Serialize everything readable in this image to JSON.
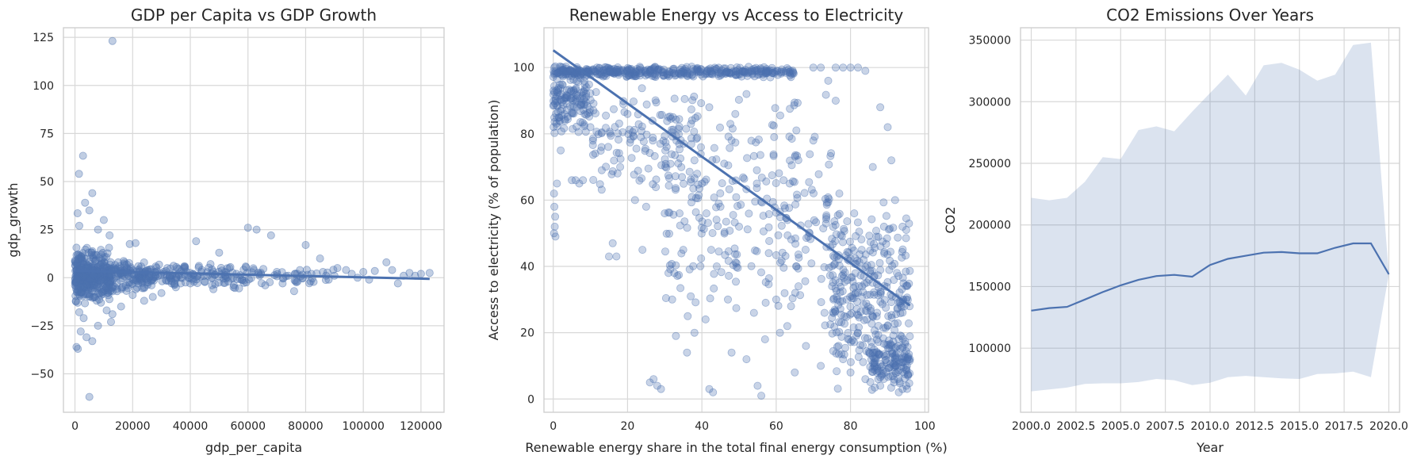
{
  "chart_data": [
    {
      "type": "scatter",
      "title": "GDP per Capita vs GDP Growth",
      "xlabel": "gdp_per_capita",
      "ylabel": "gdp_growth",
      "xlim": [
        -4000,
        128000
      ],
      "ylim": [
        -70,
        130
      ],
      "xticks": [
        0,
        20000,
        40000,
        60000,
        80000,
        100000,
        120000
      ],
      "xtick_labels": [
        "0",
        "20000",
        "40000",
        "60000",
        "80000",
        "100000",
        "120000"
      ],
      "yticks": [
        -50,
        -25,
        0,
        25,
        50,
        75,
        100,
        125
      ],
      "ytick_labels": [
        "−50",
        "−25",
        "0",
        "25",
        "50",
        "75",
        "100",
        "125"
      ],
      "grid": true,
      "color": "#4c72b0",
      "marker_alpha": 0.35,
      "points": [
        [
          13000,
          123.1
        ],
        [
          2800,
          63.4
        ],
        [
          1400,
          54.0
        ],
        [
          6000,
          44.0
        ],
        [
          3500,
          39.0
        ],
        [
          5000,
          35.0
        ],
        [
          900,
          33.5
        ],
        [
          10000,
          30.0
        ],
        [
          1500,
          27.0
        ],
        [
          8000,
          25.0
        ],
        [
          12000,
          22.0
        ],
        [
          19000,
          17.5
        ],
        [
          21000,
          18.0
        ],
        [
          42000,
          19.0
        ],
        [
          50000,
          13.0
        ],
        [
          60000,
          26.0
        ],
        [
          63000,
          25.0
        ],
        [
          68000,
          22.0
        ],
        [
          80000,
          17.0
        ],
        [
          85000,
          10.0
        ],
        [
          91000,
          5.0
        ],
        [
          100000,
          3.0
        ],
        [
          104000,
          3.5
        ],
        [
          108000,
          8.0
        ],
        [
          110000,
          4.0
        ],
        [
          116000,
          2.5
        ],
        [
          120000,
          2.0
        ],
        [
          123000,
          2.5
        ],
        [
          118000,
          1.0
        ],
        [
          96000,
          2.0
        ],
        [
          88000,
          -1.0
        ],
        [
          76000,
          -7.0
        ],
        [
          72000,
          -3.0
        ],
        [
          66000,
          -4.0
        ],
        [
          55000,
          -5.0
        ],
        [
          48000,
          -6.0
        ],
        [
          45000,
          -2.0
        ],
        [
          40000,
          -3.0
        ],
        [
          35000,
          -5.0
        ],
        [
          30000,
          -8.0
        ],
        [
          27000,
          -10.0
        ],
        [
          24000,
          -12.0
        ],
        [
          20000,
          -9.0
        ],
        [
          16000,
          -15.0
        ],
        [
          13000,
          -19.0
        ],
        [
          12500,
          -23.0
        ],
        [
          11000,
          -17.0
        ],
        [
          9000,
          -13.0
        ],
        [
          8000,
          -25.0
        ],
        [
          6000,
          -33.0
        ],
        [
          4000,
          -31.0
        ],
        [
          2000,
          -28.0
        ],
        [
          1000,
          -37.0
        ],
        [
          500,
          -36.0
        ],
        [
          5000,
          -62.0
        ],
        [
          3000,
          -21.0
        ],
        [
          1500,
          -18.0
        ],
        [
          7000,
          -10.0
        ],
        [
          15000,
          8.0
        ],
        [
          18000,
          5.0
        ],
        [
          22000,
          6.0
        ],
        [
          25000,
          4.0
        ],
        [
          28000,
          3.0
        ],
        [
          32000,
          5.0
        ],
        [
          36000,
          2.0
        ],
        [
          38000,
          6.0
        ],
        [
          44000,
          4.0
        ],
        [
          46000,
          1.0
        ],
        [
          52000,
          3.0
        ],
        [
          56000,
          2.0
        ],
        [
          58000,
          -1.0
        ],
        [
          62000,
          4.0
        ],
        [
          64000,
          1.0
        ],
        [
          70000,
          3.0
        ],
        [
          74000,
          1.0
        ],
        [
          78000,
          4.0
        ],
        [
          82000,
          2.0
        ],
        [
          86000,
          3.0
        ],
        [
          90000,
          1.0
        ],
        [
          94000,
          4.0
        ],
        [
          98000,
          0.0
        ],
        [
          102000,
          -1.0
        ],
        [
          112000,
          -3.0
        ],
        [
          114000,
          1.0
        ]
      ],
      "dense_regions": [
        {
          "x": [
            0,
            12000
          ],
          "y": [
            -14,
            16
          ],
          "n": 380
        },
        {
          "x": [
            12000,
            30000
          ],
          "y": [
            -8,
            10
          ],
          "n": 160
        },
        {
          "x": [
            30000,
            60000
          ],
          "y": [
            -6,
            8
          ],
          "n": 110
        },
        {
          "x": [
            60000,
            90000
          ],
          "y": [
            -4,
            6
          ],
          "n": 40
        }
      ],
      "trend_line": {
        "x": [
          0,
          123000
        ],
        "y": [
          3.6,
          -0.6
        ]
      }
    },
    {
      "type": "scatter",
      "title": "Renewable Energy vs Access to Electricity",
      "xlabel": "Renewable energy share in the total final energy consumption (%)",
      "ylabel": "Access to electricity (% of population)",
      "xlim": [
        -2.5,
        101
      ],
      "ylim": [
        -4,
        112
      ],
      "xticks": [
        0,
        20,
        40,
        60,
        80,
        100
      ],
      "xtick_labels": [
        "0",
        "20",
        "40",
        "60",
        "80",
        "100"
      ],
      "yticks": [
        0,
        20,
        40,
        60,
        80,
        100
      ],
      "ytick_labels": [
        "0",
        "20",
        "40",
        "60",
        "80",
        "100"
      ],
      "grid": true,
      "color": "#4c72b0",
      "marker_alpha": 0.3,
      "points": [
        [
          0.2,
          62
        ],
        [
          0.3,
          58
        ],
        [
          0.5,
          55
        ],
        [
          0.4,
          52
        ],
        [
          0.2,
          50
        ],
        [
          0.6,
          49
        ],
        [
          1.0,
          65
        ],
        [
          2.0,
          75
        ],
        [
          5,
          66
        ],
        [
          6,
          66
        ],
        [
          7,
          65
        ],
        [
          8,
          66
        ],
        [
          10,
          82
        ],
        [
          13,
          76
        ],
        [
          15,
          43
        ],
        [
          16,
          47
        ],
        [
          17,
          43
        ],
        [
          18,
          70
        ],
        [
          20,
          86
        ],
        [
          22,
          60
        ],
        [
          24,
          45
        ],
        [
          25,
          58
        ],
        [
          26,
          5
        ],
        [
          27,
          6
        ],
        [
          28,
          4
        ],
        [
          29,
          3
        ],
        [
          30,
          56
        ],
        [
          31,
          38
        ],
        [
          32,
          30
        ],
        [
          33,
          19
        ],
        [
          34,
          56
        ],
        [
          35,
          45
        ],
        [
          36,
          14
        ],
        [
          37,
          31
        ],
        [
          38,
          20
        ],
        [
          40,
          65
        ],
        [
          41,
          24
        ],
        [
          42,
          3
        ],
        [
          43,
          2
        ],
        [
          44,
          40
        ],
        [
          45,
          58
        ],
        [
          46,
          71
        ],
        [
          47,
          30
        ],
        [
          48,
          14
        ],
        [
          49,
          86
        ],
        [
          50,
          52
        ],
        [
          52,
          12
        ],
        [
          54,
          26
        ],
        [
          55,
          4
        ],
        [
          56,
          1
        ],
        [
          57,
          18
        ],
        [
          58,
          44
        ],
        [
          60,
          30
        ],
        [
          61,
          20
        ],
        [
          62,
          66
        ],
        [
          63,
          22
        ],
        [
          64,
          28
        ],
        [
          65,
          8
        ],
        [
          66,
          34
        ],
        [
          68,
          16
        ],
        [
          69,
          50
        ],
        [
          70,
          78
        ],
        [
          72,
          10
        ],
        [
          73,
          26
        ],
        [
          74,
          96
        ],
        [
          75,
          40
        ],
        [
          76,
          90
        ],
        [
          77,
          62
        ],
        [
          78,
          12
        ],
        [
          79,
          30
        ],
        [
          80,
          8
        ],
        [
          81,
          56
        ],
        [
          82,
          20
        ],
        [
          83,
          45
        ],
        [
          84,
          6
        ],
        [
          85,
          36
        ],
        [
          86,
          25
        ],
        [
          87,
          14
        ],
        [
          88,
          4
        ],
        [
          89,
          52
        ],
        [
          90,
          22
        ],
        [
          91,
          72
        ],
        [
          92,
          10
        ],
        [
          93,
          18
        ],
        [
          94,
          3
        ],
        [
          95,
          30
        ],
        [
          96,
          12
        ],
        [
          95,
          4
        ],
        [
          93,
          2
        ],
        [
          94,
          52
        ],
        [
          95,
          51
        ],
        [
          92,
          60
        ],
        [
          80,
          100
        ],
        [
          82,
          100
        ],
        [
          78,
          100
        ],
        [
          76,
          100
        ],
        [
          72,
          100
        ],
        [
          70,
          100
        ],
        [
          84,
          99
        ],
        [
          88,
          88
        ],
        [
          90,
          82
        ],
        [
          86,
          70
        ],
        [
          52,
          92
        ],
        [
          48,
          78
        ],
        [
          42,
          88
        ],
        [
          38,
          72
        ]
      ],
      "dense_regions": [
        {
          "x": [
            0,
            65
          ],
          "y": [
            97,
            100.5
          ],
          "n": 420
        },
        {
          "x": [
            0,
            10
          ],
          "y": [
            80,
            100
          ],
          "n": 140
        },
        {
          "x": [
            10,
            40
          ],
          "y": [
            60,
            97
          ],
          "n": 120
        },
        {
          "x": [
            30,
            75
          ],
          "y": [
            20,
            95
          ],
          "n": 260
        },
        {
          "x": [
            75,
            96
          ],
          "y": [
            2,
            60
          ],
          "n": 300
        },
        {
          "x": [
            85,
            96
          ],
          "y": [
            2,
            20
          ],
          "n": 120
        }
      ],
      "trend_line": {
        "x": [
          0,
          96
        ],
        "y": [
          105.2,
          28.2
        ]
      }
    },
    {
      "type": "line",
      "title": "CO2 Emissions Over Years",
      "xlabel": "Year",
      "ylabel": "CO2",
      "xlim": [
        1999.4,
        2020.6
      ],
      "ylim": [
        48000,
        360000
      ],
      "xticks": [
        2000.0,
        2002.5,
        2005.0,
        2007.5,
        2010.0,
        2012.5,
        2015.0,
        2017.5,
        2020.0
      ],
      "xtick_labels": [
        "2000.0",
        "2002.5",
        "2005.0",
        "2007.5",
        "2010.0",
        "2012.5",
        "2015.0",
        "2017.5",
        "2020.0"
      ],
      "yticks": [
        100000,
        150000,
        200000,
        250000,
        300000,
        350000
      ],
      "ytick_labels": [
        "100000",
        "150000",
        "200000",
        "250000",
        "300000",
        "350000"
      ],
      "grid": true,
      "color": "#4c72b0",
      "band_alpha": 0.2,
      "x": [
        2000,
        2001,
        2002,
        2003,
        2004,
        2005,
        2006,
        2007,
        2008,
        2009,
        2010,
        2011,
        2012,
        2013,
        2014,
        2015,
        2016,
        2017,
        2018,
        2019,
        2020
      ],
      "y": [
        130500,
        132500,
        133500,
        139500,
        145500,
        151000,
        155500,
        158500,
        159500,
        158000,
        167500,
        172500,
        175000,
        177500,
        178000,
        177000,
        177000,
        181500,
        185000,
        185000,
        160000
      ],
      "ci_lower": [
        65000,
        66500,
        68000,
        71000,
        71500,
        71500,
        72500,
        75000,
        74000,
        70000,
        72000,
        76500,
        77500,
        76500,
        75500,
        75000,
        79000,
        79500,
        81000,
        76500,
        160000
      ],
      "ci_upper": [
        222000,
        220000,
        222000,
        235000,
        255000,
        253500,
        277000,
        280000,
        276000,
        292000,
        307000,
        322000,
        305000,
        329500,
        331500,
        326000,
        317000,
        322000,
        346000,
        348000,
        160000
      ]
    }
  ]
}
